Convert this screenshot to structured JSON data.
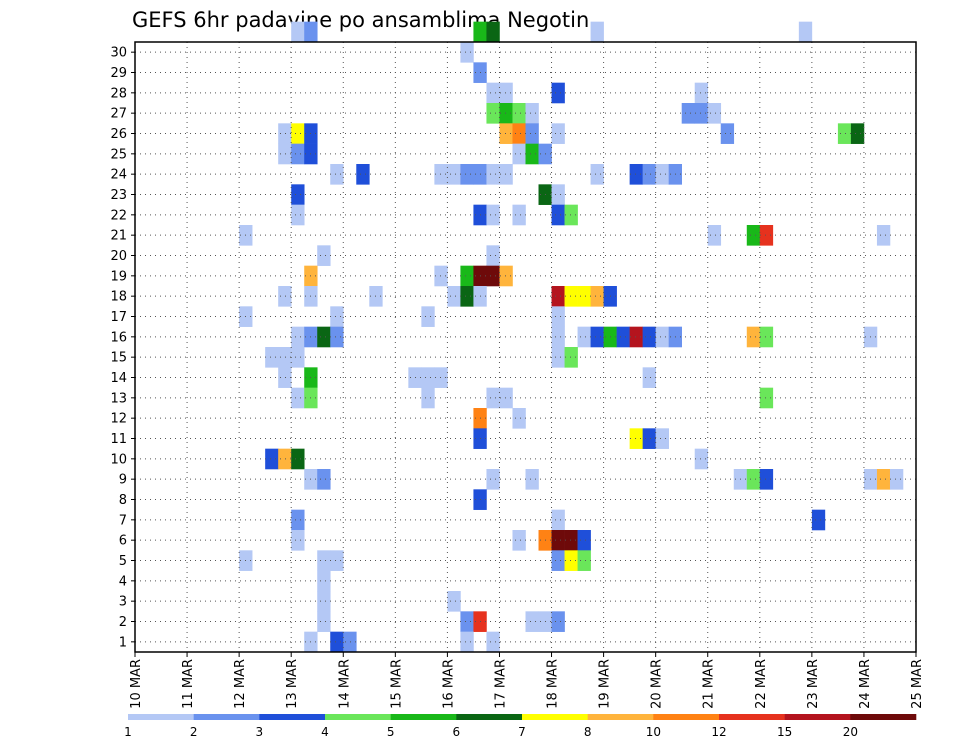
{
  "chart_data": {
    "type": "heatmap",
    "title": "GEFS 6hr padavine po ansamblima Negotin",
    "xlabel": "",
    "ylabel": "",
    "x_tick_labels": [
      "10 MAR",
      "11 MAR",
      "12 MAR",
      "13 MAR",
      "14 MAR",
      "15 MAR",
      "16 MAR",
      "17 MAR",
      "18 MAR",
      "19 MAR",
      "20 MAR",
      "21 MAR",
      "22 MAR",
      "23 MAR",
      "24 MAR",
      "25 MAR"
    ],
    "x_step": "6hr",
    "xlim": [
      0,
      60
    ],
    "y_tick_labels": [
      "1",
      "2",
      "3",
      "4",
      "5",
      "6",
      "7",
      "8",
      "9",
      "10",
      "11",
      "12",
      "13",
      "14",
      "15",
      "16",
      "17",
      "18",
      "19",
      "20",
      "21",
      "22",
      "23",
      "24",
      "25",
      "26",
      "27",
      "28",
      "29",
      "30"
    ],
    "ylim": [
      0,
      30
    ],
    "grid": true,
    "colorbar": {
      "position": "bottom",
      "labels": [
        "1",
        "2",
        "3",
        "4",
        "5",
        "6",
        "7",
        "8",
        "10",
        "12",
        "15",
        "20"
      ],
      "colors": [
        "#b4c8f5",
        "#6a92ee",
        "#1f4fd9",
        "#6ae65a",
        "#19b819",
        "#0a6614",
        "#ffff00",
        "#ffb43c",
        "#ff8214",
        "#e6321e",
        "#b4141e",
        "#6e0a0a"
      ]
    },
    "cells": [
      [
        30,
        12,
        0
      ],
      [
        30,
        13,
        1
      ],
      [
        30,
        26,
        4
      ],
      [
        30,
        27,
        5
      ],
      [
        30,
        35,
        0
      ],
      [
        30,
        51,
        0
      ],
      [
        29,
        25,
        0
      ],
      [
        28,
        26,
        1
      ],
      [
        27,
        27,
        0
      ],
      [
        27,
        28,
        0
      ],
      [
        27,
        32,
        2
      ],
      [
        27,
        43,
        0
      ],
      [
        26,
        27,
        3
      ],
      [
        26,
        28,
        4
      ],
      [
        26,
        29,
        3
      ],
      [
        26,
        30,
        0
      ],
      [
        26,
        42,
        1
      ],
      [
        26,
        43,
        1
      ],
      [
        26,
        44,
        0
      ],
      [
        25,
        11,
        0
      ],
      [
        25,
        12,
        6
      ],
      [
        25,
        13,
        2
      ],
      [
        25,
        28,
        7
      ],
      [
        25,
        29,
        8
      ],
      [
        25,
        30,
        1
      ],
      [
        25,
        32,
        0
      ],
      [
        25,
        45,
        1
      ],
      [
        25,
        54,
        3
      ],
      [
        25,
        55,
        5
      ],
      [
        24,
        11,
        0
      ],
      [
        24,
        12,
        1
      ],
      [
        24,
        13,
        2
      ],
      [
        24,
        29,
        0
      ],
      [
        24,
        30,
        4
      ],
      [
        24,
        31,
        1
      ],
      [
        23,
        15,
        0
      ],
      [
        23,
        17,
        2
      ],
      [
        23,
        23,
        0
      ],
      [
        23,
        24,
        0
      ],
      [
        23,
        25,
        1
      ],
      [
        23,
        26,
        1
      ],
      [
        23,
        27,
        0
      ],
      [
        23,
        28,
        0
      ],
      [
        23,
        35,
        0
      ],
      [
        23,
        38,
        2
      ],
      [
        23,
        39,
        1
      ],
      [
        23,
        40,
        0
      ],
      [
        23,
        41,
        1
      ],
      [
        22,
        12,
        2
      ],
      [
        22,
        31,
        5
      ],
      [
        22,
        32,
        0
      ],
      [
        21,
        12,
        0
      ],
      [
        21,
        26,
        2
      ],
      [
        21,
        27,
        0
      ],
      [
        21,
        29,
        0
      ],
      [
        21,
        32,
        2
      ],
      [
        21,
        33,
        3
      ],
      [
        20,
        8,
        0
      ],
      [
        20,
        44,
        0
      ],
      [
        20,
        47,
        4
      ],
      [
        20,
        48,
        9
      ],
      [
        20,
        57,
        0
      ],
      [
        19,
        14,
        0
      ],
      [
        19,
        27,
        0
      ],
      [
        18,
        13,
        7
      ],
      [
        18,
        23,
        0
      ],
      [
        18,
        25,
        4
      ],
      [
        18,
        26,
        11
      ],
      [
        18,
        27,
        11
      ],
      [
        18,
        28,
        7
      ],
      [
        17,
        11,
        0
      ],
      [
        17,
        13,
        0
      ],
      [
        17,
        18,
        0
      ],
      [
        17,
        24,
        0
      ],
      [
        17,
        25,
        5
      ],
      [
        17,
        26,
        0
      ],
      [
        17,
        32,
        10
      ],
      [
        17,
        33,
        6
      ],
      [
        17,
        34,
        6
      ],
      [
        17,
        35,
        7
      ],
      [
        17,
        36,
        2
      ],
      [
        16,
        8,
        0
      ],
      [
        16,
        15,
        0
      ],
      [
        16,
        22,
        0
      ],
      [
        16,
        32,
        0
      ],
      [
        15,
        12,
        0
      ],
      [
        15,
        13,
        1
      ],
      [
        15,
        14,
        5
      ],
      [
        15,
        15,
        1
      ],
      [
        15,
        32,
        0
      ],
      [
        15,
        34,
        0
      ],
      [
        15,
        35,
        2
      ],
      [
        15,
        36,
        4
      ],
      [
        15,
        37,
        2
      ],
      [
        15,
        38,
        10
      ],
      [
        15,
        39,
        2
      ],
      [
        15,
        40,
        0
      ],
      [
        15,
        41,
        1
      ],
      [
        15,
        47,
        7
      ],
      [
        15,
        48,
        3
      ],
      [
        15,
        56,
        0
      ],
      [
        14,
        10,
        0
      ],
      [
        14,
        11,
        0
      ],
      [
        14,
        12,
        0
      ],
      [
        14,
        32,
        0
      ],
      [
        14,
        33,
        3
      ],
      [
        13,
        11,
        0
      ],
      [
        13,
        13,
        4
      ],
      [
        13,
        21,
        0
      ],
      [
        13,
        22,
        0
      ],
      [
        13,
        23,
        0
      ],
      [
        13,
        39,
        0
      ],
      [
        12,
        12,
        0
      ],
      [
        12,
        13,
        3
      ],
      [
        12,
        22,
        0
      ],
      [
        12,
        27,
        0
      ],
      [
        12,
        28,
        0
      ],
      [
        12,
        48,
        3
      ],
      [
        11,
        29,
        0
      ],
      [
        11,
        26,
        8
      ],
      [
        10,
        26,
        2
      ],
      [
        10,
        38,
        6
      ],
      [
        10,
        39,
        2
      ],
      [
        10,
        40,
        0
      ],
      [
        9,
        10,
        2
      ],
      [
        9,
        11,
        7
      ],
      [
        9,
        12,
        5
      ],
      [
        9,
        43,
        0
      ],
      [
        8,
        13,
        0
      ],
      [
        8,
        14,
        1
      ],
      [
        8,
        27,
        0
      ],
      [
        8,
        30,
        0
      ],
      [
        8,
        46,
        0
      ],
      [
        8,
        47,
        3
      ],
      [
        8,
        48,
        2
      ],
      [
        8,
        56,
        0
      ],
      [
        8,
        57,
        7
      ],
      [
        8,
        58,
        0
      ],
      [
        7,
        26,
        2
      ],
      [
        6,
        12,
        1
      ],
      [
        6,
        32,
        0
      ],
      [
        6,
        52,
        2
      ],
      [
        5,
        12,
        0
      ],
      [
        5,
        29,
        0
      ],
      [
        5,
        31,
        8
      ],
      [
        5,
        32,
        11
      ],
      [
        5,
        33,
        11
      ],
      [
        5,
        34,
        2
      ],
      [
        4,
        8,
        0
      ],
      [
        4,
        14,
        0
      ],
      [
        4,
        15,
        0
      ],
      [
        4,
        32,
        1
      ],
      [
        4,
        33,
        6
      ],
      [
        4,
        34,
        3
      ],
      [
        3,
        14,
        0
      ],
      [
        2,
        14,
        0
      ],
      [
        2,
        24,
        0
      ],
      [
        1,
        14,
        0
      ],
      [
        1,
        25,
        1
      ],
      [
        1,
        26,
        9
      ],
      [
        1,
        30,
        0
      ],
      [
        1,
        31,
        0
      ],
      [
        1,
        32,
        1
      ],
      [
        0,
        13,
        0
      ],
      [
        0,
        15,
        2
      ],
      [
        0,
        16,
        1
      ],
      [
        0,
        25,
        0
      ],
      [
        0,
        27,
        0
      ]
    ]
  }
}
